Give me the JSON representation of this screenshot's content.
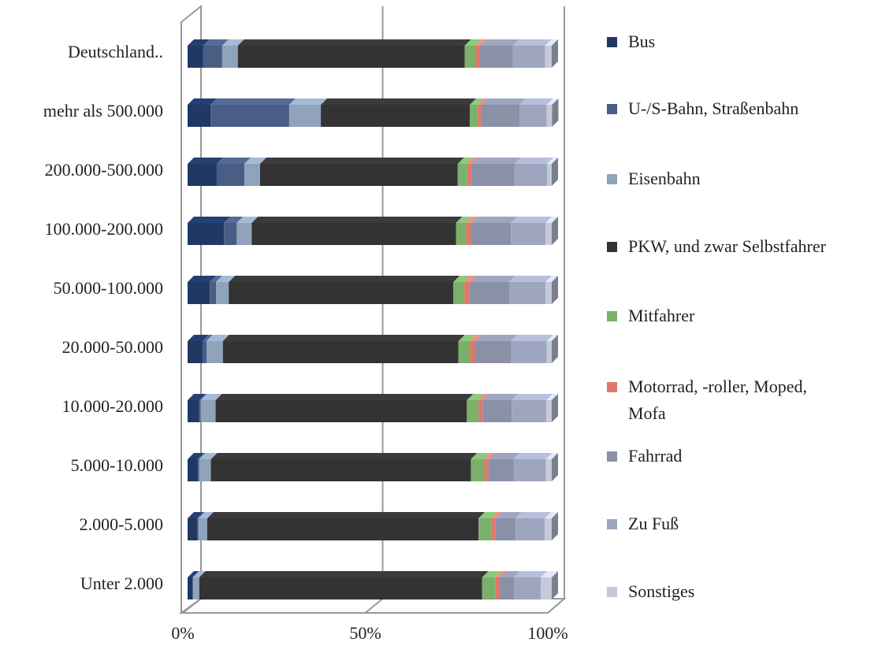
{
  "chart_data": {
    "type": "bar3d_stacked_percent",
    "categories": [
      "Deutschland..",
      "mehr als 500.000",
      "200.000-500.000",
      "100.000-200.000",
      "50.000-100.000",
      "20.000-50.000",
      "10.000-20.000",
      "5.000-10.000",
      "2.000-5.000",
      "Unter 2.000"
    ],
    "series": [
      {
        "name": "Bus",
        "color": "#1f3864",
        "values": [
          4.3,
          6.3,
          8.0,
          10.0,
          6.1,
          4.1,
          3.2,
          2.8,
          2.6,
          1.3
        ]
      },
      {
        "name": "U-/S-Bahn, Straßenbahn",
        "color": "#4a5d84",
        "values": [
          5.2,
          21.6,
          7.6,
          3.5,
          1.7,
          1.1,
          0.4,
          0.4,
          0.4,
          0.2
        ]
      },
      {
        "name": "Eisenbahn",
        "color": "#8fa3ba",
        "values": [
          4.3,
          8.7,
          4.3,
          4.1,
          3.5,
          4.5,
          4.1,
          3.2,
          2.4,
          1.7
        ]
      },
      {
        "name": "PKW, und zwar Selbstfahrer",
        "color": "#333333",
        "values": [
          62.3,
          40.9,
          54.3,
          56.1,
          61.7,
          64.7,
          69.0,
          71.4,
          74.5,
          77.7
        ]
      },
      {
        "name": "Mitfahrer",
        "color": "#7bb06b",
        "values": [
          3.0,
          2.2,
          2.6,
          2.8,
          3.0,
          3.2,
          3.2,
          3.7,
          3.5,
          3.7
        ]
      },
      {
        "name": "Motorrad, -roller, Moped, Mofa",
        "color": "#e0786a",
        "values": [
          1.1,
          0.9,
          1.1,
          1.3,
          1.5,
          1.3,
          1.1,
          1.1,
          1.1,
          1.1
        ]
      },
      {
        "name": "Fahrrad",
        "color": "#8a90a6",
        "values": [
          9.1,
          10.6,
          11.9,
          11.0,
          10.8,
          10.0,
          8.0,
          6.9,
          5.6,
          3.9
        ]
      },
      {
        "name": "Zu Fuß",
        "color": "#9ea6bf",
        "values": [
          8.9,
          7.4,
          8.9,
          9.5,
          10.0,
          9.7,
          9.5,
          8.9,
          8.0,
          7.4
        ]
      },
      {
        "name": "Sonstiges",
        "color": "#c5cad9",
        "values": [
          1.8,
          1.5,
          1.3,
          1.7,
          1.7,
          1.4,
          1.5,
          1.6,
          1.9,
          3.0
        ]
      }
    ],
    "xlim": [
      0,
      100
    ],
    "xticks": [
      {
        "value": 0,
        "label": "0%"
      },
      {
        "value": 50,
        "label": "50%"
      },
      {
        "value": 100,
        "label": "100%"
      }
    ],
    "grid": true,
    "legend": "right"
  }
}
